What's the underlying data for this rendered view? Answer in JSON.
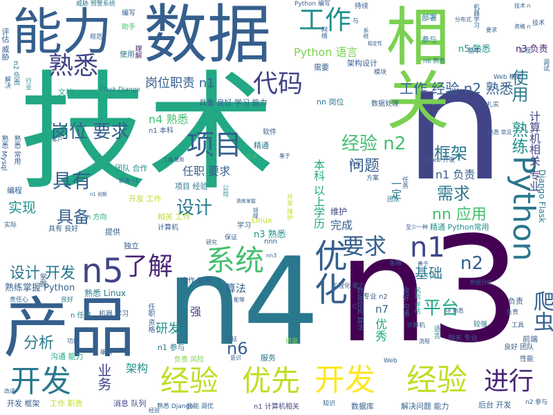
{
  "palette": [
    "#440154",
    "#482475",
    "#414487",
    "#355f8d",
    "#2a788e",
    "#21918c",
    "#22a884",
    "#44bf70",
    "#7ad151",
    "#bddf26",
    "#fde725"
  ],
  "words": {
    "w_jishu": "技术",
    "w_n": "n",
    "w_n3": "n3",
    "w_n4": "n4",
    "w_chanpin": "产品",
    "w_shuju": "数据",
    "w_xiangguan": "相关",
    "w_nengli": "能力",
    "w_kaifa_big": "开发",
    "w_jingyan1": "经验",
    "w_jingyan2": "经验",
    "w_youxian": "优先",
    "w_jinxing": "进行",
    "w_kaifa_left": "开发",
    "w_python_v": "Python",
    "w_n5": "n5",
    "w_liaojie": "了解",
    "w_xitong": "系统",
    "w_youhua": "优化",
    "w_xiangmu": "项目",
    "w_shuxi": "熟悉",
    "w_gongzuo1": "工作",
    "w_daima": "代码",
    "w_yaoqiu1": "要求",
    "w_n1": "n1",
    "w_n2": "n2",
    "w_jiagou_k": "框架",
    "w_xuqiu": "需求",
    "w_jingyan_n2": "经验 n2",
    "w_gangwei_yaoqiu": "岗位 要求",
    "w_juyou": "具有",
    "w_jubei": "具备",
    "w_sheji": "设计",
    "w_sheji_kaifa": "设计 开发",
    "w_fenxi": "分析",
    "w_shixian": "实现",
    "w_n6": "n6",
    "w_yanfa": "研发",
    "w_pingtai": "平台",
    "w_pachong": "爬虫",
    "w_jichu": "基础",
    "w_wenti": "问题",
    "w_nn_yingyong": "nn 应用",
    "w_shulian": "熟练",
    "w_shiyong": "使用",
    "w_gangweizhize_n1": "岗位职责 n1",
    "w_gongzuo_jingyan_n2_shuxi": "工作 经验 n2 熟悉",
    "w_python_yuyan": "Python 语言",
    "w_n4_shuxi": "n4 熟悉",
    "w_renzhi_yaoqiu": "任职 要求",
    "w_n1_fuze": "n1 负责",
    "w_jisuanji_xiangguan_zhuanye": "计算机相关 专业",
    "w_django_flask": "Django Flask",
    "w_n3_fuze": "n3 负责",
    "w_n5_shuxi": "n5 熟悉",
    "w_n3_shuxi": "n3 熟悉",
    "w_benke_yishang_xueli": "本科 以上学历",
    "w_wancheng": "完成",
    "w_yiding": "一定",
    "w_weihu": "维护",
    "w_jiagou": "架构",
    "w_yewu": "业务",
    "w_suanfa": "算法",
    "w_qiang": "强",
    "w_n7": "n7",
    "w_youxiu": "优秀",
    "w_linux": "Linux",
    "w_shuxi_linux": "熟悉 Linux",
    "w_shulian_zhangwo_python": "熟练掌握 Python",
    "w_jingtong_python_changyong": "精通 Python常用",
    "w_xiaoxi_duilie": "消息 队列",
    "w_kaifa_kuangjia": "开发 框架",
    "w_gongzuo_zhize": "工作 职责",
    "w_n1_jisuanji": "n1 计算机相关",
    "w_shujuku": "数据库",
    "w_jiejue_wenti_nengli": "解决问题 能力",
    "w_houtai_kaifa": "后台 开发",
    "w_n2_canyu": "n2 参与",
    "w_fuwu": "服务",
    "w_n1_canyu": "n1 参与",
    "w_n_renzhi": "n 任职",
    "w_goutong_nengli": "沟通 能力",
    "w_tuandui_hezuo": "团队 合作",
    "w_xiangmu_jingyan": "项目 经验",
    "w_kaifa_gongzuo": "开发 工作",
    "w_xiangguan_gongzuo": "相关 工作",
    "w_jubei_lianghao_xuexi_nengli": "具备 良好 学习 能力",
    "w_nn_gangwei": "nn 岗位",
    "w_python_bianxie": "Python 编写",
    "w_chixu": "持续",
    "w_bumen": "部署",
    "w_canyu": "参与",
    "w_n6_shuxi": "n6 熟悉",
    "w_jiben": "基本",
    "w_web_kuangjia": "Web 框架",
    "w_jiagou_sheji": "架构设计",
    "w_xuyao": "需要",
    "w_mokuai": "模块",
    "w_flask_django": "Flask Django",
    "w_wendang": "文档",
    "w_weixie_yujing": "威胁 预警系统",
    "w_bianxie": "编写",
    "w_zhushou": "助手",
    "w_guifan": "规范",
    "w_shiyong_small": "使用",
    "w_lijie": "理解",
    "w_pinggu_weixie": "评估 威胁",
    "w_n2_fuze": "n2 负责",
    "w_jiejue": "解决",
    "w_hangye": "行业",
    "w_zeren_xin": "责任心",
    "w_shuxi_mysql": "熟悉 Mysql",
    "w_shuxi_changyong": "熟悉 常用",
    "w_bianchen": "编程",
    "w_shiji": "实际",
    "w_zhangwo": "掌握",
    "w_lianghao": "良好",
    "w_jiqi_xuexi": "机器 学习",
    "w_renzhi_zige": "任职 资格",
    "w_hezuo_jingshen": "合作 精神",
    "w_xingneng_tiaoyou": "性能 调优",
    "w_shuju_chuli": "数据处理",
    "w_shuxi_changjian": "熟悉 常见",
    "w_ruanjian": "软件",
    "w_jingtong": "精通",
    "w_xieyi": "协议",
    "w_fangan": "方案",
    "w_tuandui": "团队",
    "w_renwu": "任务",
    "w_zhishao": "至少一种",
    "w_xuexi": "学习",
    "w_jisuanji": "计算机",
    "w_tigong": "提供",
    "w_duli": "独立",
    "w_baozheng": "保证",
    "w_juyou_lianghao": "具有 良好",
    "w_n_fangxiang": "n 方向",
    "w_gongsi": "公司",
    "w_kaifa_weihu": "开发 维护",
    "w_zhize": "职责",
    "w_jiyu": "基于",
    "w_yibu": "异步",
    "w_kehu": "客户",
    "w_web_kaifa": "Web 开发",
    "w_zhiyuan_n1": "职责 n1",
    "w_gongju_shiyong": "工具 使用",
    "w_n1_benke": "n1 本科",
    "w_shuju_fenxi": "数据分析",
    "w_jiaoqiang": "较强",
    "w_gongju": "工具",
    "w_qianduan": "前端",
    "w_lianghao_tuandui": "良好 团队",
    "w_xingneng": "性能",
    "w_liucheng": "流程",
    "w_fuze": "负责",
    "w_xiangguan_zhuanye": "相关 专业",
    "w_zhiliang": "质量",
    "w_gongneng": "功能",
    "w_yuyan": "语言",
    "w_shuju_jiegou_suanfa": "数据结构 算法",
    "w_fengxian_pinggu": "风险 评估",
    "w_fuze_fengxian": "负责 风险",
    "w_gongchenghua_nengli": "工程化 能力",
    "w_jingyan_small": "经验",
    "w_zhishi": "知识",
    "w_yishi": "意识",
    "w_baokuo": "包括",
    "w_biancheng": "编码",
    "w_gaijin": "改进",
    "w_shuxi_django": "熟悉 Django",
    "w_n1_chuangxin": "n1 创新",
    "w_zhuanye_n2": "专业 n2",
    "w_jinrong": "金融",
    "w_shanyu": "善于",
    "w_nnn": "nnn",
    "w_n3_small": "nn3",
    "w_yanjiu": "研究",
    "w_lingyu": "领域",
    "w_gongcheng": "工程",
    "w_zhichi": "支持",
    "w_gongxiang": "贡献",
    "w_jianshe": "建设",
    "w_zhineng": "智能",
    "w_tiaoshi": "调试",
    "w_ziyuan_n": "资格 n",
    "w_zhashi": "扎实",
    "w_c_small": "C",
    "w_web_small": "Web",
    "w_fenbushi": "分布式",
    "w_wangluo": "网络",
    "w_wending": "稳定性",
    "w_shuxi_n": "熟悉 n",
    "w_yu": "与",
    "w_xitong_small": "系统",
    "w_jixie": "机器学习",
    "w_n8_shuxi": "n8 熟悉",
    "w_fuze_small": "负责",
    "w_lianghao_goutong": "良好 沟通",
    "w_jisuan": "计算机",
    "w_neng": "能够",
    "w_shuxi_zhangwo": "熟练掌握",
    "w_jishu_n": "技术 n",
    "w_jishu_small": "技术",
    "w_yaoqiu_small": "要求"
  }
}
